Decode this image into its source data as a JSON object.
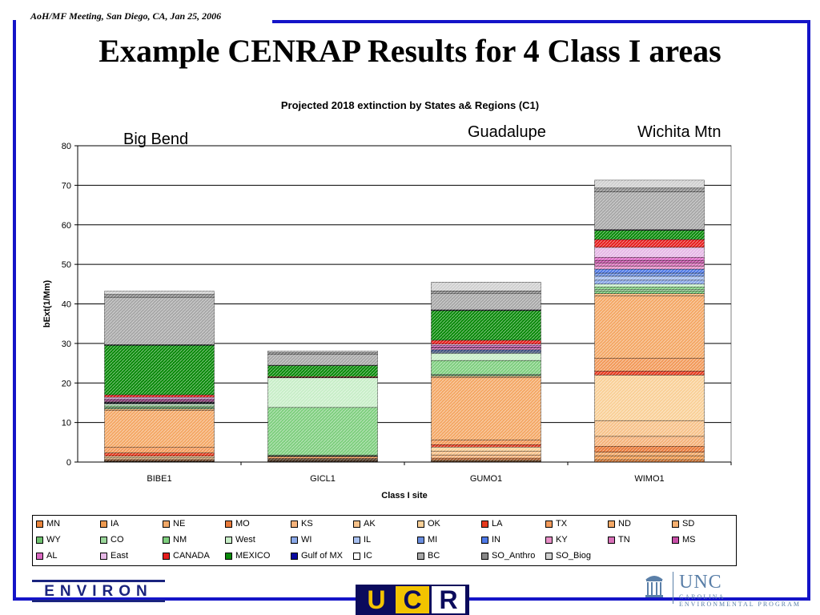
{
  "header": {
    "meeting": "AoH/MF Meeting, San Diego, CA,  Jan 25, 2006",
    "title": "Example CENRAP Results for 4 Class I areas"
  },
  "site_labels": [
    "Big Bend",
    "Guadalupe",
    "Wichita Mtn"
  ],
  "logos": {
    "environ": "ENVIRON",
    "ucr": [
      "U",
      "C",
      "R"
    ],
    "unc_main": "UNC",
    "unc_sub_1": "CAROLINA",
    "unc_sub_2": "ENVIRONMENTAL PROGRAM"
  },
  "chart_data": {
    "type": "bar",
    "stacked": true,
    "title": "Projected 2018 extinction by States a& Regions (C1)",
    "xlabel": "Class I site",
    "ylabel": "bExt(1/Mm)",
    "ylim": [
      0,
      80
    ],
    "yticks": [
      0,
      10,
      20,
      30,
      40,
      50,
      60,
      70,
      80
    ],
    "categories": [
      "BIBE1",
      "GICL1",
      "GUMO1",
      "WIMO1"
    ],
    "grid": true,
    "legend_position": "bottom",
    "series": [
      {
        "name": "MN",
        "color": "#e8843c",
        "values": [
          0.1,
          0.0,
          0.2,
          0.6
        ]
      },
      {
        "name": "IA",
        "color": "#ee9a50",
        "values": [
          0.1,
          0.1,
          0.2,
          1.0
        ]
      },
      {
        "name": "NE",
        "color": "#f0a868",
        "values": [
          0.1,
          0.1,
          0.2,
          0.9
        ]
      },
      {
        "name": "MO",
        "color": "#e87a3a",
        "values": [
          0.2,
          0.1,
          0.4,
          1.5
        ]
      },
      {
        "name": "KS",
        "color": "#f5b27a",
        "values": [
          0.3,
          0.2,
          0.8,
          2.5
        ]
      },
      {
        "name": "AK",
        "color": "#f7c28a",
        "values": [
          0.3,
          0.1,
          1.0,
          4.0
        ]
      },
      {
        "name": "OK",
        "color": "#f9d098",
        "values": [
          0.4,
          0.2,
          1.0,
          11.5
        ]
      },
      {
        "name": "LA",
        "color": "#e63a1e",
        "values": [
          0.8,
          0.1,
          0.6,
          1.0
        ]
      },
      {
        "name": "TX",
        "color": "#f29a5a",
        "values": [
          1.5,
          0.4,
          1.2,
          3.3
        ]
      },
      {
        "name": "ND",
        "color": "#f4a866",
        "values": [
          9.3,
          0.0,
          15.8,
          15.7
        ]
      },
      {
        "name": "SD",
        "color": "#f7b070",
        "values": [
          0.3,
          0.2,
          0.3,
          0.6
        ]
      },
      {
        "name": "WY",
        "color": "#6fc06f",
        "values": [
          0.2,
          0.1,
          0.2,
          0.6
        ]
      },
      {
        "name": "CO",
        "color": "#9ad69a",
        "values": [
          0.3,
          0.2,
          0.3,
          0.5
        ]
      },
      {
        "name": "NM",
        "color": "#7fcf7f",
        "values": [
          0.3,
          12.0,
          3.5,
          0.6
        ]
      },
      {
        "name": "West",
        "color": "#c8eec8",
        "values": [
          0.5,
          7.5,
          1.8,
          0.7
        ]
      },
      {
        "name": "WI",
        "color": "#8aa8e8",
        "values": [
          0.1,
          0.0,
          0.2,
          1.0
        ]
      },
      {
        "name": "IL",
        "color": "#a8c0f0",
        "values": [
          0.1,
          0.0,
          0.2,
          1.0
        ]
      },
      {
        "name": "MI",
        "color": "#6a8ee0",
        "values": [
          0.1,
          0.0,
          0.2,
          0.8
        ]
      },
      {
        "name": "IN",
        "color": "#4f7ae8",
        "values": [
          0.1,
          0.0,
          0.2,
          1.0
        ]
      },
      {
        "name": "KY",
        "color": "#e890c8",
        "values": [
          0.1,
          0.0,
          0.2,
          0.8
        ]
      },
      {
        "name": "TN",
        "color": "#d870b8",
        "values": [
          0.2,
          0.0,
          0.3,
          0.8
        ]
      },
      {
        "name": "MS",
        "color": "#c850a8",
        "values": [
          0.3,
          0.0,
          0.3,
          0.6
        ]
      },
      {
        "name": "AL",
        "color": "#d868c0",
        "values": [
          0.3,
          0.0,
          0.4,
          0.8
        ]
      },
      {
        "name": "East",
        "color": "#e6b8e6",
        "values": [
          0.4,
          0.1,
          0.3,
          2.5
        ]
      },
      {
        "name": "CANADA",
        "color": "#e61e1e",
        "values": [
          0.6,
          0.2,
          1.0,
          2.0
        ]
      },
      {
        "name": "MEXICO",
        "color": "#0a8a0a",
        "values": [
          12.5,
          2.8,
          7.5,
          2.3
        ]
      },
      {
        "name": "Gulf of MX",
        "color": "#0a0aa0",
        "values": [
          0.1,
          0.0,
          0.1,
          0.1
        ]
      },
      {
        "name": "IC",
        "color": "#ffffff",
        "values": [
          0.1,
          0.1,
          0.1,
          0.1
        ]
      },
      {
        "name": "BC",
        "color": "#a8a8a8",
        "values": [
          12.0,
          2.8,
          4.2,
          9.5
        ]
      },
      {
        "name": "SO_Anthro",
        "color": "#888888",
        "values": [
          0.7,
          0.4,
          0.6,
          1.0
        ]
      },
      {
        "name": "SO_Biog",
        "color": "#d0d0d0",
        "values": [
          0.8,
          0.4,
          2.2,
          2.0
        ]
      }
    ]
  }
}
